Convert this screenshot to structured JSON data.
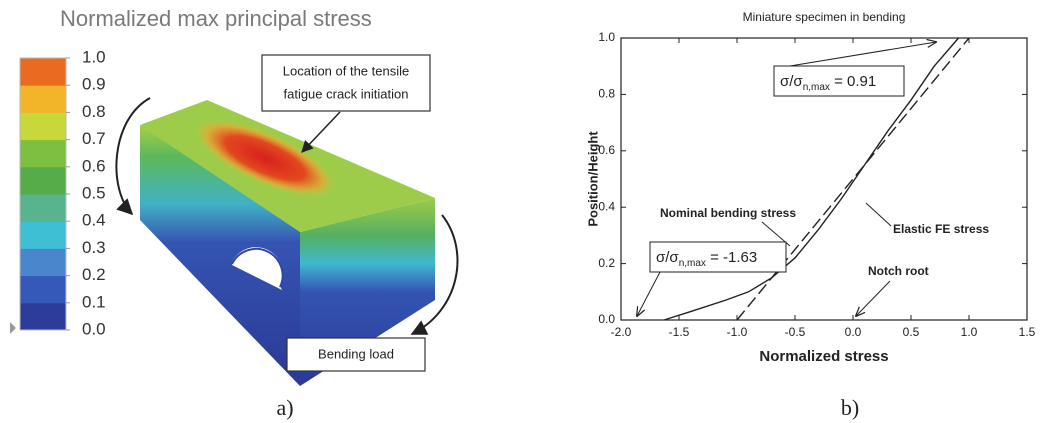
{
  "chart_data": [
    {
      "type": "colormap",
      "title": "Normalized max principal stress",
      "clim": [
        0,
        1
      ],
      "colorbar": {
        "ticks": [
          {
            "value": 1,
            "label": "1.0"
          },
          0.9,
          0.8,
          0.7,
          0.6,
          0.5,
          0.4,
          0.3,
          0.2,
          0.1,
          {
            "value": 0,
            "label": "0.0"
          }
        ],
        "colors": [
          "#2c3c98",
          "#3559b8",
          "#4a86cc",
          "#3fbfd4",
          "#57b48e",
          "#55ac48",
          "#7dbf40",
          "#c8d83a",
          "#f2b52a",
          "#ea6a22"
        ]
      },
      "annotations": [
        [
          "Location of the tensile",
          "fatigue crack initiation"
        ],
        "Bending load"
      ],
      "panel_label": "a)"
    },
    {
      "type": "line",
      "title": "Miniature specimen in bending",
      "xlabel": "Normalized stress",
      "ylabel": "Position/Height",
      "xlim": [
        -2,
        1.5
      ],
      "ylim": [
        0,
        1
      ],
      "xticks": [
        {
          "value": -2,
          "label": "-2.0"
        },
        -1.5,
        {
          "value": -1,
          "label": "-1.0"
        },
        -0.5,
        {
          "value": 0,
          "label": "0.0"
        },
        0.5,
        {
          "value": 1,
          "label": "1.0"
        },
        1.5
      ],
      "yticks": [
        {
          "value": 0,
          "label": "0.0"
        },
        0.2,
        0.4,
        0.6,
        0.8,
        {
          "value": 1,
          "label": "1.0"
        }
      ],
      "series": [
        {
          "name": "Nominal bending stress",
          "color": "#222222",
          "dashed": true,
          "x": [
            -1,
            1
          ],
          "values": [
            0,
            1
          ]
        },
        {
          "name": "Elastic FE stress",
          "color": "#222222",
          "dashed": false,
          "x": [
            -1.63,
            -1.4,
            -1.1,
            -0.9,
            -0.7,
            -0.5,
            -0.3,
            -0.1,
            0.1,
            0.3,
            0.5,
            0.7,
            0.91
          ],
          "values": [
            0,
            0.03,
            0.07,
            0.1,
            0.15,
            0.22,
            0.32,
            0.43,
            0.55,
            0.67,
            0.78,
            0.9,
            1
          ]
        }
      ],
      "annotations": [
        {
          "prefix": "σ/σ",
          "subscript": "n,max",
          "suffix": " = 0.91"
        },
        {
          "prefix": "σ/σ",
          "subscript": "n,max",
          "suffix": " = -1.63"
        },
        "Notch root"
      ],
      "panel_label": "b)"
    }
  ]
}
